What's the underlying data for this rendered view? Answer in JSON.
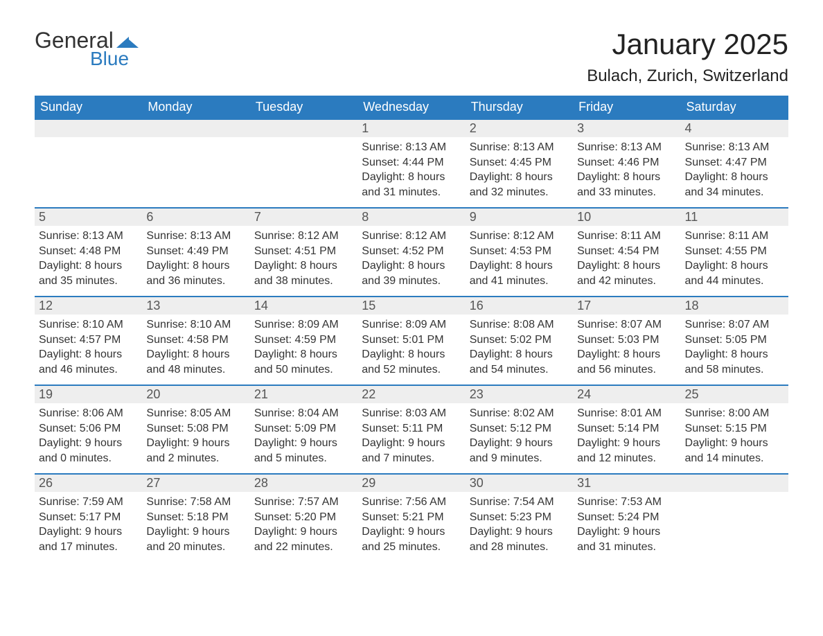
{
  "logo": {
    "text_general": "General",
    "text_blue": "Blue",
    "accent_color": "#2b7bbf"
  },
  "header": {
    "month_title": "January 2025",
    "location": "Bulach, Zurich, Switzerland"
  },
  "styling": {
    "header_bg": "#2b7bbf",
    "header_text": "#ffffff",
    "daynum_bg": "#eeeeee",
    "daynum_border_top": "#2b7bbf",
    "body_bg": "#ffffff",
    "text_color": "#333333",
    "font_family": "Arial",
    "title_fontsize_pt": 32,
    "location_fontsize_pt": 18,
    "dayhead_fontsize_pt": 14,
    "body_fontsize_pt": 12
  },
  "calendar": {
    "type": "table",
    "day_headers": [
      "Sunday",
      "Monday",
      "Tuesday",
      "Wednesday",
      "Thursday",
      "Friday",
      "Saturday"
    ],
    "weeks": [
      [
        null,
        null,
        null,
        {
          "day": "1",
          "sunrise": "8:13 AM",
          "sunset": "4:44 PM",
          "daylight": "8 hours and 31 minutes."
        },
        {
          "day": "2",
          "sunrise": "8:13 AM",
          "sunset": "4:45 PM",
          "daylight": "8 hours and 32 minutes."
        },
        {
          "day": "3",
          "sunrise": "8:13 AM",
          "sunset": "4:46 PM",
          "daylight": "8 hours and 33 minutes."
        },
        {
          "day": "4",
          "sunrise": "8:13 AM",
          "sunset": "4:47 PM",
          "daylight": "8 hours and 34 minutes."
        }
      ],
      [
        {
          "day": "5",
          "sunrise": "8:13 AM",
          "sunset": "4:48 PM",
          "daylight": "8 hours and 35 minutes."
        },
        {
          "day": "6",
          "sunrise": "8:13 AM",
          "sunset": "4:49 PM",
          "daylight": "8 hours and 36 minutes."
        },
        {
          "day": "7",
          "sunrise": "8:12 AM",
          "sunset": "4:51 PM",
          "daylight": "8 hours and 38 minutes."
        },
        {
          "day": "8",
          "sunrise": "8:12 AM",
          "sunset": "4:52 PM",
          "daylight": "8 hours and 39 minutes."
        },
        {
          "day": "9",
          "sunrise": "8:12 AM",
          "sunset": "4:53 PM",
          "daylight": "8 hours and 41 minutes."
        },
        {
          "day": "10",
          "sunrise": "8:11 AM",
          "sunset": "4:54 PM",
          "daylight": "8 hours and 42 minutes."
        },
        {
          "day": "11",
          "sunrise": "8:11 AM",
          "sunset": "4:55 PM",
          "daylight": "8 hours and 44 minutes."
        }
      ],
      [
        {
          "day": "12",
          "sunrise": "8:10 AM",
          "sunset": "4:57 PM",
          "daylight": "8 hours and 46 minutes."
        },
        {
          "day": "13",
          "sunrise": "8:10 AM",
          "sunset": "4:58 PM",
          "daylight": "8 hours and 48 minutes."
        },
        {
          "day": "14",
          "sunrise": "8:09 AM",
          "sunset": "4:59 PM",
          "daylight": "8 hours and 50 minutes."
        },
        {
          "day": "15",
          "sunrise": "8:09 AM",
          "sunset": "5:01 PM",
          "daylight": "8 hours and 52 minutes."
        },
        {
          "day": "16",
          "sunrise": "8:08 AM",
          "sunset": "5:02 PM",
          "daylight": "8 hours and 54 minutes."
        },
        {
          "day": "17",
          "sunrise": "8:07 AM",
          "sunset": "5:03 PM",
          "daylight": "8 hours and 56 minutes."
        },
        {
          "day": "18",
          "sunrise": "8:07 AM",
          "sunset": "5:05 PM",
          "daylight": "8 hours and 58 minutes."
        }
      ],
      [
        {
          "day": "19",
          "sunrise": "8:06 AM",
          "sunset": "5:06 PM",
          "daylight": "9 hours and 0 minutes."
        },
        {
          "day": "20",
          "sunrise": "8:05 AM",
          "sunset": "5:08 PM",
          "daylight": "9 hours and 2 minutes."
        },
        {
          "day": "21",
          "sunrise": "8:04 AM",
          "sunset": "5:09 PM",
          "daylight": "9 hours and 5 minutes."
        },
        {
          "day": "22",
          "sunrise": "8:03 AM",
          "sunset": "5:11 PM",
          "daylight": "9 hours and 7 minutes."
        },
        {
          "day": "23",
          "sunrise": "8:02 AM",
          "sunset": "5:12 PM",
          "daylight": "9 hours and 9 minutes."
        },
        {
          "day": "24",
          "sunrise": "8:01 AM",
          "sunset": "5:14 PM",
          "daylight": "9 hours and 12 minutes."
        },
        {
          "day": "25",
          "sunrise": "8:00 AM",
          "sunset": "5:15 PM",
          "daylight": "9 hours and 14 minutes."
        }
      ],
      [
        {
          "day": "26",
          "sunrise": "7:59 AM",
          "sunset": "5:17 PM",
          "daylight": "9 hours and 17 minutes."
        },
        {
          "day": "27",
          "sunrise": "7:58 AM",
          "sunset": "5:18 PM",
          "daylight": "9 hours and 20 minutes."
        },
        {
          "day": "28",
          "sunrise": "7:57 AM",
          "sunset": "5:20 PM",
          "daylight": "9 hours and 22 minutes."
        },
        {
          "day": "29",
          "sunrise": "7:56 AM",
          "sunset": "5:21 PM",
          "daylight": "9 hours and 25 minutes."
        },
        {
          "day": "30",
          "sunrise": "7:54 AM",
          "sunset": "5:23 PM",
          "daylight": "9 hours and 28 minutes."
        },
        {
          "day": "31",
          "sunrise": "7:53 AM",
          "sunset": "5:24 PM",
          "daylight": "9 hours and 31 minutes."
        },
        null
      ]
    ],
    "labels": {
      "sunrise_prefix": "Sunrise: ",
      "sunset_prefix": "Sunset: ",
      "daylight_prefix": "Daylight: "
    }
  }
}
